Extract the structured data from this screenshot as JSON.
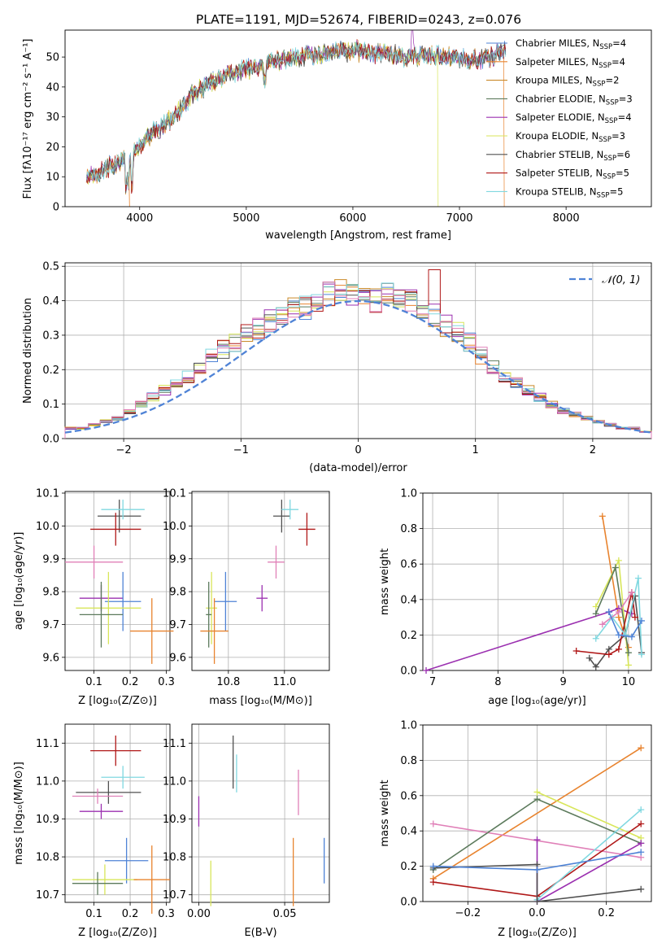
{
  "title": "PLATE=1191, MJD=52674, FIBERID=0243, z=0.076",
  "colors": {
    "chabrier_miles": "#4f83d6",
    "salpeter_miles": "#e8832e",
    "kroupa_miles": "#c98a2a",
    "chabrier_elodie": "#5c7a5c",
    "salpeter_elodie": "#9b30b0",
    "kroupa_elodie": "#d8e65a",
    "chabrier_stelib": "#505050",
    "salpeter_stelib": "#b01818",
    "kroupa_stelib": "#80d8e0",
    "pink": "#e080b8",
    "gauss": "#4f83d6"
  },
  "spectrum": {
    "xlabel": "wavelength [Angstrom, rest frame]",
    "ylabel": "Flux [fλ10⁻¹⁷ erg cm⁻² s⁻¹ A⁻¹]",
    "xlim": [
      3300,
      8800
    ],
    "ylim": [
      0,
      59
    ],
    "xticks": [
      "4000",
      "5000",
      "6000",
      "7000",
      "8000"
    ],
    "yticks": [
      "0",
      "10",
      "20",
      "30",
      "40",
      "50"
    ],
    "legend": [
      {
        "name": "Chabrier MILES, N",
        "sub": "SSP",
        "n": "=4"
      },
      {
        "name": "Salpeter MILES, N",
        "sub": "SSP",
        "n": "=4"
      },
      {
        "name": "Kroupa MILES, N",
        "sub": "SSP",
        "n": "=2"
      },
      {
        "name": "Chabrier ELODIE, N",
        "sub": "SSP",
        "n": "=3"
      },
      {
        "name": "Salpeter ELODIE, N",
        "sub": "SSP",
        "n": "=4"
      },
      {
        "name": "Kroupa ELODIE, N",
        "sub": "SSP",
        "n": "=3"
      },
      {
        "name": "Chabrier STELIB, N",
        "sub": "SSP",
        "n": "=6"
      },
      {
        "name": "Salpeter STELIB, N",
        "sub": "SSP",
        "n": "=5"
      },
      {
        "name": "Kroupa STELIB, N",
        "sub": "SSP",
        "n": "=5"
      }
    ]
  },
  "hist": {
    "xlabel": "(data-model)/error",
    "ylabel": "Normed distribution",
    "legend": "𝒩(0, 1)",
    "xticks": [
      "−2",
      "−1",
      "0",
      "1",
      "2"
    ],
    "yticks": [
      "0.0",
      "0.1",
      "0.2",
      "0.3",
      "0.4",
      "0.5"
    ],
    "xlim": [
      -2.5,
      2.5
    ],
    "ylim": [
      0,
      0.51
    ]
  },
  "panels": {
    "zage": {
      "xlabel": "Z [log₁₀(Z/Z⊙)]",
      "ylabel": "age  [log₁₀(age/yr)]",
      "xticks": [
        "0.1",
        "0.2",
        "0.3"
      ],
      "yticks": [
        "9.6",
        "9.7",
        "9.8",
        "9.9",
        "10.0",
        "10.1"
      ]
    },
    "massage": {
      "xlabel": "mass [log₁₀(M/M⊙)]",
      "xticks": [
        "10.8",
        "11.0"
      ],
      "yticks": [
        "9.6",
        "9.7",
        "9.8",
        "9.9",
        "10.0",
        "10.1"
      ]
    },
    "agew": {
      "xlabel": "age  [log₁₀(age/yr)]",
      "ylabel": "mass weight",
      "xticks": [
        "7",
        "8",
        "9",
        "10"
      ],
      "yticks": [
        "0.0",
        "0.2",
        "0.4",
        "0.6",
        "0.8",
        "1.0"
      ]
    },
    "zmass": {
      "xlabel": "Z [log₁₀(Z/Z⊙)]",
      "ylabel": "mass [log₁₀(M/M⊙)]",
      "xticks": [
        "0.1",
        "0.2",
        "0.3"
      ],
      "yticks": [
        "10.7",
        "10.8",
        "10.9",
        "11.0",
        "11.1"
      ]
    },
    "ebv": {
      "xlabel": "E(B-V)",
      "xticks": [
        "0.00",
        "0.05"
      ],
      "yticks": [
        "10.7",
        "10.8",
        "10.9",
        "11.0",
        "11.1"
      ]
    },
    "zw": {
      "xlabel": "Z [log₁₀(Z/Z⊙)]",
      "ylabel": "mass weight",
      "xticks": [
        "−0.2",
        "0.0",
        "0.2"
      ],
      "yticks": [
        "0.0",
        "0.2",
        "0.4",
        "0.6",
        "0.8",
        "1.0"
      ]
    }
  },
  "chart_data": [
    {
      "type": "line",
      "title": "PLATE=1191, MJD=52674, FIBERID=0243, z=0.076",
      "xlabel": "wavelength [Angstrom, rest frame]",
      "ylabel": "Flux",
      "xlim": [
        3300,
        8800
      ],
      "ylim": [
        0,
        59
      ],
      "x": [
        3500,
        3700,
        3900,
        4100,
        4300,
        4500,
        4700,
        4900,
        5100,
        5300,
        5500,
        5700,
        5900,
        6100,
        6300,
        6500,
        6700,
        6900,
        7100,
        7300,
        7500
      ],
      "series": [
        {
          "name": "Chabrier MILES",
          "values": [
            10,
            13,
            16,
            24,
            29,
            38,
            42,
            45,
            47,
            49,
            50,
            51,
            52,
            52,
            51,
            50,
            51,
            50,
            49,
            50,
            53
          ]
        }
      ],
      "annotations": [
        "Salpeter MILES cutoff at 7420",
        "Kroupa ELODIE cutoff at 6800"
      ],
      "legend": "top-right"
    },
    {
      "type": "bar",
      "xlabel": "(data-model)/error",
      "ylabel": "Normed distribution",
      "xlim": [
        -2.5,
        2.5
      ],
      "ylim": [
        0,
        0.51
      ],
      "x": [
        -2.45,
        -2.35,
        -2.25,
        -2.15,
        -2.05,
        -1.95,
        -1.85,
        -1.75,
        -1.65,
        -1.55,
        -1.45,
        -1.35,
        -1.25,
        -1.15,
        -1.05,
        -0.95,
        -0.85,
        -0.75,
        -0.65,
        -0.55,
        -0.45,
        -0.35,
        -0.25,
        -0.15,
        -0.05,
        0.05,
        0.15,
        0.25,
        0.35,
        0.45,
        0.55,
        0.65,
        0.75,
        0.85,
        0.95,
        1.05,
        1.15,
        1.25,
        1.35,
        1.45,
        1.55,
        1.65,
        1.75,
        1.85,
        1.95,
        2.05,
        2.15,
        2.25,
        2.35,
        2.45
      ],
      "series": [
        {
          "name": "histogram",
          "values": [
            0.03,
            0.03,
            0.04,
            0.05,
            0.06,
            0.08,
            0.1,
            0.12,
            0.14,
            0.16,
            0.18,
            0.2,
            0.24,
            0.26,
            0.28,
            0.3,
            0.32,
            0.34,
            0.36,
            0.38,
            0.38,
            0.4,
            0.42,
            0.43,
            0.42,
            0.41,
            0.4,
            0.42,
            0.41,
            0.4,
            0.38,
            0.36,
            0.33,
            0.31,
            0.28,
            0.24,
            0.21,
            0.18,
            0.16,
            0.14,
            0.12,
            0.1,
            0.08,
            0.07,
            0.06,
            0.05,
            0.04,
            0.03,
            0.03,
            0.02
          ]
        },
        {
          "name": "𝒩(0, 1)",
          "values": "gaussian"
        }
      ],
      "legend": "top-right"
    },
    {
      "type": "scatter",
      "xlabel": "Z",
      "ylabel": "age",
      "points": [
        {
          "x": 0.17,
          "y": 10.03,
          "xerr": 0.06,
          "yerr": 0.05,
          "c": "chabrier_stelib"
        },
        {
          "x": 0.18,
          "y": 10.05,
          "xerr": 0.06,
          "yerr": 0.03,
          "c": "kroupa_stelib"
        },
        {
          "x": 0.16,
          "y": 9.99,
          "xerr": 0.07,
          "yerr": 0.05,
          "c": "salpeter_stelib"
        },
        {
          "x": 0.1,
          "y": 9.89,
          "xerr": 0.08,
          "yerr": 0.05,
          "c": "pink"
        },
        {
          "x": 0.12,
          "y": 9.78,
          "xerr": 0.06,
          "yerr": 0.04,
          "c": "salpeter_elodie"
        },
        {
          "x": 0.18,
          "y": 9.77,
          "xerr": 0.05,
          "yerr": 0.09,
          "c": "chabrier_miles"
        },
        {
          "x": 0.14,
          "y": 9.75,
          "xerr": 0.09,
          "yerr": 0.11,
          "c": "kroupa_elodie"
        },
        {
          "x": 0.12,
          "y": 9.73,
          "xerr": 0.06,
          "yerr": 0.1,
          "c": "chabrier_elodie"
        },
        {
          "x": 0.26,
          "y": 9.68,
          "xerr": 0.06,
          "yerr": 0.1,
          "c": "salpeter_miles"
        }
      ]
    },
    {
      "type": "scatter",
      "xlabel": "mass",
      "ylabel": "age",
      "points": [
        {
          "x": 10.99,
          "y": 10.03,
          "xerr": 0.03,
          "yerr": 0.05,
          "c": "chabrier_stelib"
        },
        {
          "x": 11.02,
          "y": 10.05,
          "xerr": 0.03,
          "yerr": 0.03,
          "c": "kroupa_stelib"
        },
        {
          "x": 11.08,
          "y": 9.99,
          "xerr": 0.03,
          "yerr": 0.05,
          "c": "salpeter_stelib"
        },
        {
          "x": 10.97,
          "y": 9.89,
          "xerr": 0.03,
          "yerr": 0.05,
          "c": "pink"
        },
        {
          "x": 10.92,
          "y": 9.78,
          "xerr": 0.02,
          "yerr": 0.04,
          "c": "salpeter_elodie"
        },
        {
          "x": 10.79,
          "y": 9.77,
          "xerr": 0.04,
          "yerr": 0.09,
          "c": "chabrier_miles"
        },
        {
          "x": 10.74,
          "y": 9.75,
          "xerr": 0.02,
          "yerr": 0.11,
          "c": "kroupa_elodie"
        },
        {
          "x": 10.73,
          "y": 9.73,
          "xerr": 0.01,
          "yerr": 0.1,
          "c": "chabrier_elodie"
        },
        {
          "x": 10.75,
          "y": 9.68,
          "xerr": 0.05,
          "yerr": 0.1,
          "c": "salpeter_miles"
        }
      ]
    },
    {
      "type": "line",
      "xlabel": "age",
      "ylabel": "mass weight",
      "series": [
        {
          "name": "salpeter_miles",
          "x": [
            9.6,
            9.85,
            10.0
          ],
          "values": [
            0.87,
            0.3,
            0.13
          ]
        },
        {
          "name": "salpeter_elodie",
          "x": [
            6.9,
            9.7,
            9.85,
            10.05
          ],
          "values": [
            0.0,
            0.33,
            0.35,
            0.32
          ]
        },
        {
          "name": "kroupa_elodie",
          "x": [
            9.5,
            9.85,
            10.0
          ],
          "values": [
            0.36,
            0.62,
            0.03
          ]
        },
        {
          "name": "chabrier_elodie",
          "x": [
            9.5,
            9.8,
            10.0
          ],
          "values": [
            0.32,
            0.58,
            0.1
          ]
        },
        {
          "name": "chabrier_stelib",
          "x": [
            9.4,
            9.5,
            9.7,
            9.95,
            10.1,
            10.2
          ],
          "values": [
            0.07,
            0.02,
            0.12,
            0.2,
            0.42,
            0.1
          ]
        },
        {
          "name": "salpeter_stelib",
          "x": [
            9.2,
            9.7,
            9.85,
            10.05,
            10.1
          ],
          "values": [
            0.11,
            0.09,
            0.12,
            0.44,
            0.3
          ]
        },
        {
          "name": "kroupa_stelib",
          "x": [
            9.5,
            9.75,
            9.95,
            10.15,
            10.2
          ],
          "values": [
            0.18,
            0.3,
            0.2,
            0.52,
            0.09
          ]
        },
        {
          "name": "pink",
          "x": [
            9.6,
            9.85,
            10.05
          ],
          "values": [
            0.26,
            0.33,
            0.44
          ]
        },
        {
          "name": "chabrier_miles",
          "x": [
            9.7,
            9.85,
            10.05,
            10.2
          ],
          "values": [
            0.33,
            0.2,
            0.19,
            0.28
          ]
        }
      ]
    },
    {
      "type": "scatter",
      "xlabel": "Z",
      "ylabel": "mass",
      "points": [
        {
          "x": 0.16,
          "y": 11.08,
          "xerr": 0.07,
          "yerr": 0.04,
          "c": "salpeter_stelib"
        },
        {
          "x": 0.18,
          "y": 11.01,
          "xerr": 0.06,
          "yerr": 0.03,
          "c": "kroupa_stelib"
        },
        {
          "x": 0.14,
          "y": 10.97,
          "xerr": 0.09,
          "yerr": 0.03,
          "c": "chabrier_stelib"
        },
        {
          "x": 0.11,
          "y": 10.96,
          "xerr": 0.07,
          "yerr": 0.02,
          "c": "pink"
        },
        {
          "x": 0.12,
          "y": 10.92,
          "xerr": 0.06,
          "yerr": 0.02,
          "c": "salpeter_elodie"
        },
        {
          "x": 0.19,
          "y": 10.79,
          "xerr": 0.06,
          "yerr": 0.06,
          "c": "chabrier_miles"
        },
        {
          "x": 0.13,
          "y": 10.74,
          "xerr": 0.09,
          "yerr": 0.04,
          "c": "kroupa_elodie"
        },
        {
          "x": 0.11,
          "y": 10.73,
          "xerr": 0.07,
          "yerr": 0.03,
          "c": "chabrier_elodie"
        },
        {
          "x": 0.26,
          "y": 10.74,
          "xerr": 0.05,
          "yerr": 0.09,
          "c": "salpeter_miles"
        }
      ]
    },
    {
      "type": "scatter",
      "xlabel": "E(B-V)",
      "ylabel": "mass",
      "points": [
        {
          "x": 0.0,
          "y": 10.92,
          "yerr": 0.04,
          "c": "salpeter_elodie"
        },
        {
          "x": 0.007,
          "y": 10.73,
          "yerr": 0.06,
          "c": "kroupa_elodie"
        },
        {
          "x": 0.02,
          "y": 11.05,
          "yerr": 0.07,
          "c": "chabrier_stelib"
        },
        {
          "x": 0.022,
          "y": 11.02,
          "yerr": 0.05,
          "c": "kroupa_stelib"
        },
        {
          "x": 0.055,
          "y": 10.76,
          "yerr": 0.09,
          "c": "salpeter_miles"
        },
        {
          "x": 0.058,
          "y": 10.97,
          "yerr": 0.06,
          "c": "pink"
        },
        {
          "x": 0.073,
          "y": 10.79,
          "yerr": 0.06,
          "c": "chabrier_miles"
        }
      ]
    },
    {
      "type": "line",
      "xlabel": "Z",
      "ylabel": "mass weight",
      "series": [
        {
          "name": "salpeter_miles",
          "x": [
            -0.3,
            0.3
          ],
          "values": [
            0.13,
            0.87
          ]
        },
        {
          "name": "pink",
          "x": [
            -0.3,
            0.3
          ],
          "values": [
            0.44,
            0.25
          ]
        },
        {
          "name": "kroupa_elodie",
          "x": [
            0.0,
            0.3
          ],
          "values": [
            0.62,
            0.36
          ]
        },
        {
          "name": "chabrier_elodie",
          "x": [
            -0.3,
            0.0,
            0.3
          ],
          "values": [
            0.18,
            0.58,
            0.33
          ]
        },
        {
          "name": "salpeter_elodie",
          "x": [
            0.0,
            0.0,
            0.3
          ],
          "values": [
            0.35,
            0.0,
            0.33
          ]
        },
        {
          "name": "salpeter_stelib",
          "x": [
            -0.3,
            0.0,
            0.3
          ],
          "values": [
            0.11,
            0.03,
            0.44
          ]
        },
        {
          "name": "kroupa_stelib",
          "x": [
            0.0,
            0.3
          ],
          "values": [
            0.01,
            0.52
          ]
        },
        {
          "name": "chabrier_stelib",
          "x": [
            -0.3,
            0.0,
            0.0,
            0.3
          ],
          "values": [
            0.19,
            0.21,
            0.0,
            0.07
          ]
        },
        {
          "name": "chabrier_miles",
          "x": [
            -0.3,
            0.0,
            0.3
          ],
          "values": [
            0.2,
            0.18,
            0.28
          ]
        }
      ]
    }
  ]
}
